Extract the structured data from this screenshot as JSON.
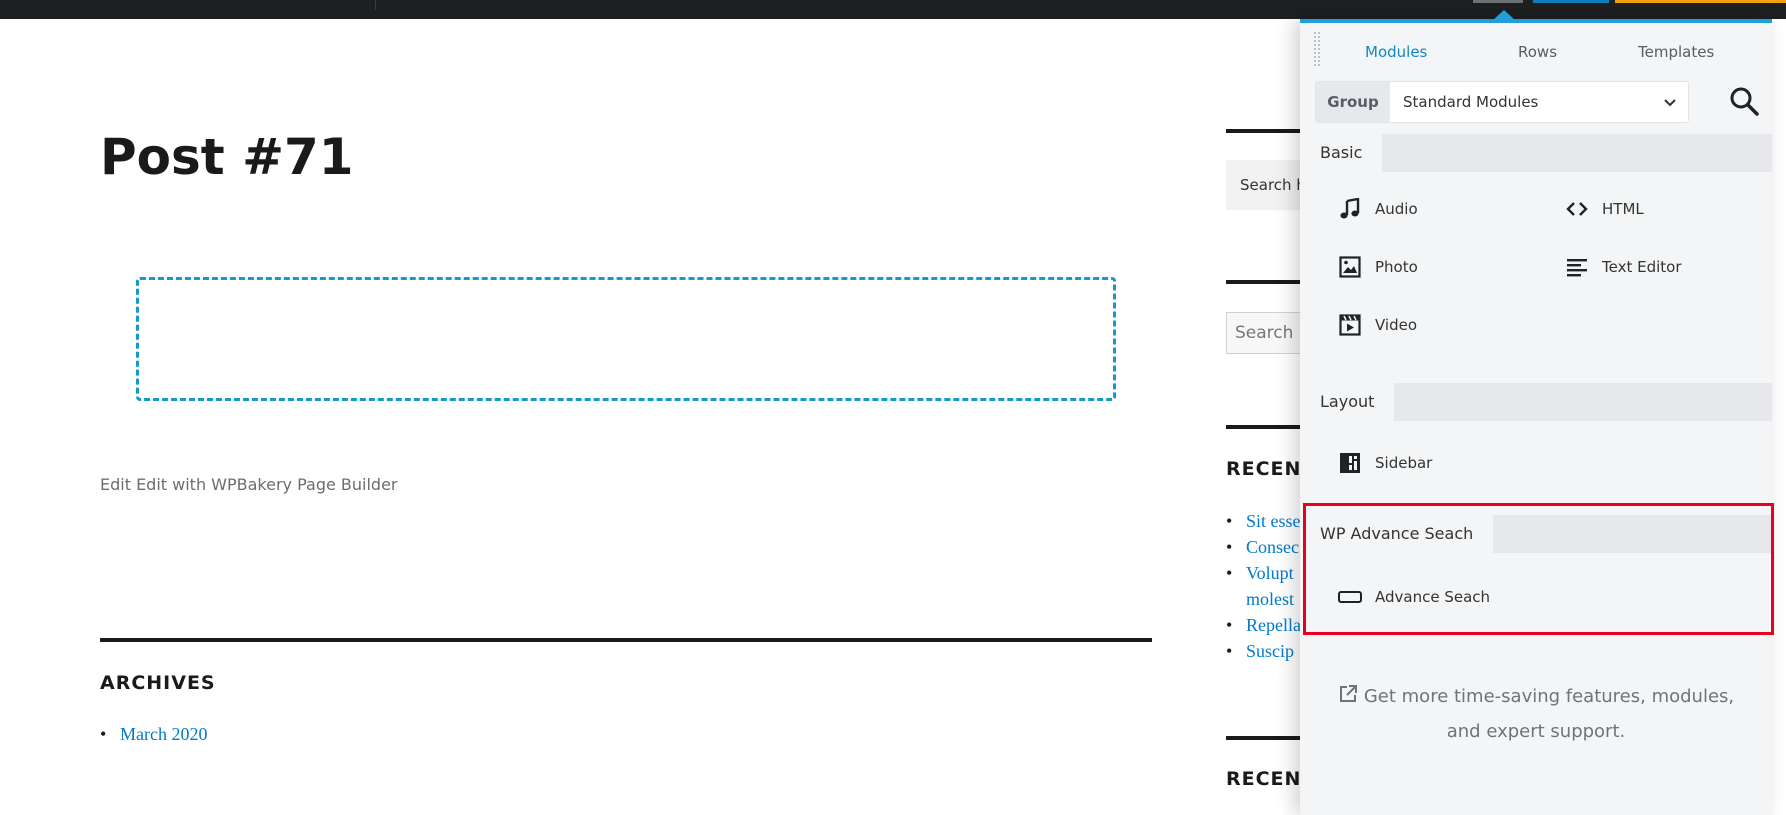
{
  "page": {
    "title": "Post #71",
    "edit_links": "Edit Edit with WPBakery Page Builder",
    "archives_heading": "ARCHIVES",
    "archives_items": [
      "March 2020"
    ]
  },
  "sidebar": {
    "search_box_1": "Search h",
    "search_box_2": "Search .",
    "recent_heading_1": "RECEN",
    "recent_items": [
      "Sit esse",
      "Consec",
      "Volupt",
      "molest",
      "Repella",
      "Suscip"
    ],
    "recent_heading_2": "RECEN"
  },
  "builder": {
    "tabs": {
      "modules": "Modules",
      "rows": "Rows",
      "templates": "Templates"
    },
    "group": {
      "label": "Group",
      "value": "Standard Modules"
    },
    "sections": {
      "basic": {
        "title": "Basic",
        "modules": [
          {
            "label": "Audio",
            "icon": "music-note-icon"
          },
          {
            "label": "HTML",
            "icon": "code-icon"
          },
          {
            "label": "Photo",
            "icon": "image-icon"
          },
          {
            "label": "Text Editor",
            "icon": "text-lines-icon"
          },
          {
            "label": "Video",
            "icon": "film-icon"
          }
        ]
      },
      "layout": {
        "title": "Layout",
        "modules": [
          {
            "label": "Sidebar",
            "icon": "sidebar-layout-icon"
          }
        ]
      },
      "wp_advance": {
        "title": "WP Advance Seach",
        "modules": [
          {
            "label": "Advance Seach",
            "icon": "input-box-icon"
          }
        ]
      }
    },
    "promo": {
      "line1": "Get more time-saving features, modules,",
      "line2": "and expert support."
    }
  },
  "colors": {
    "accent": "#1f9ed9",
    "link": "#007acc",
    "highlight": "#e8001c",
    "dropzone": "#149ac8"
  }
}
